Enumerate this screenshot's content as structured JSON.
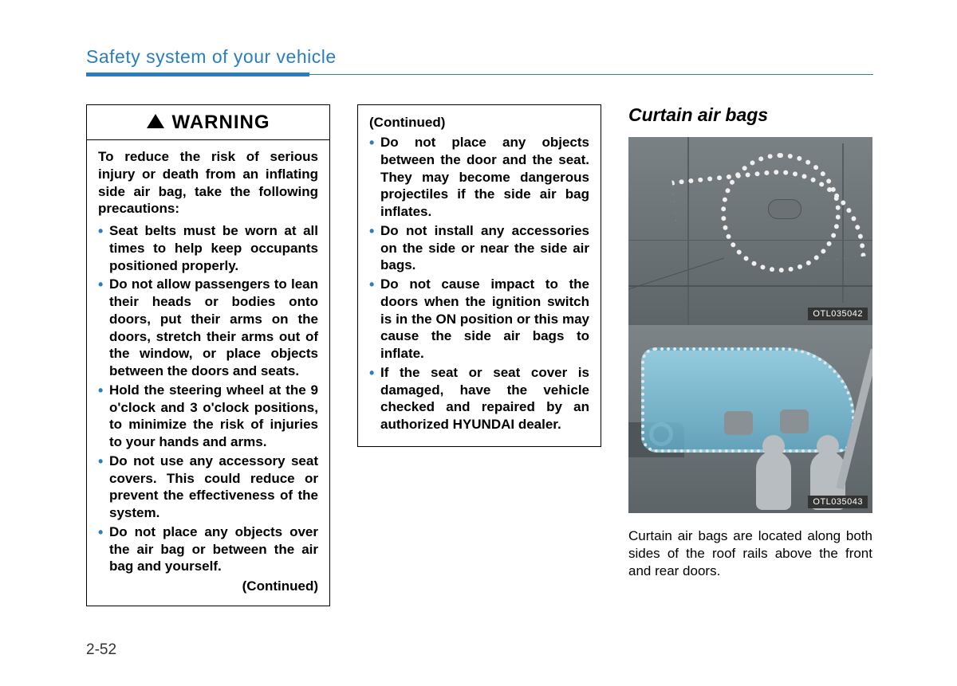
{
  "chapter_title": "Safety system of your vehicle",
  "page_number": "2-52",
  "colors": {
    "accent": "#2a7dc0",
    "text": "#000000",
    "figure_bg": "#6d7376",
    "curtain_bag": "#8ecde2"
  },
  "warning_box": {
    "header": "WARNING",
    "intro": "To reduce the risk of serious injury or death from an inflating side air bag, take the following precautions:",
    "bullets": [
      "Seat belts must be worn at all times to help keep occupants positioned properly.",
      "Do not allow passengers to lean their heads or bodies onto doors, put their arms on the doors, stretch their arms out of the window, or place objects between the doors and seats.",
      "Hold the steering wheel at the 9 o'clock and 3 o'clock positions, to minimize the risk of injuries to your hands and arms.",
      "Do not use any accessory seat covers. This could reduce or prevent the effectiveness of the system.",
      "Do not place any objects over the air bag or between the air bag and yourself."
    ],
    "continued_label": "(Continued)"
  },
  "continued_box": {
    "header": "(Continued)",
    "bullets": [
      "Do not place any objects between the door and the seat. They may become dangerous projectiles if the side air bag inflates.",
      "Do not install any accessories on the side or near the side air bags.",
      "Do not cause impact to the doors when the ignition switch is in the ON position or this may cause the side air bags to inflate.",
      "If the seat or seat cover is damaged, have the vehicle checked and repaired by an authorized HYUNDAI dealer."
    ]
  },
  "right_column": {
    "section_title": "Curtain air bags",
    "figure1_code": "OTL035042",
    "figure2_code": "OTL035043",
    "body_text": "Curtain air bags are located along both sides of the roof rails above the front and rear doors."
  }
}
